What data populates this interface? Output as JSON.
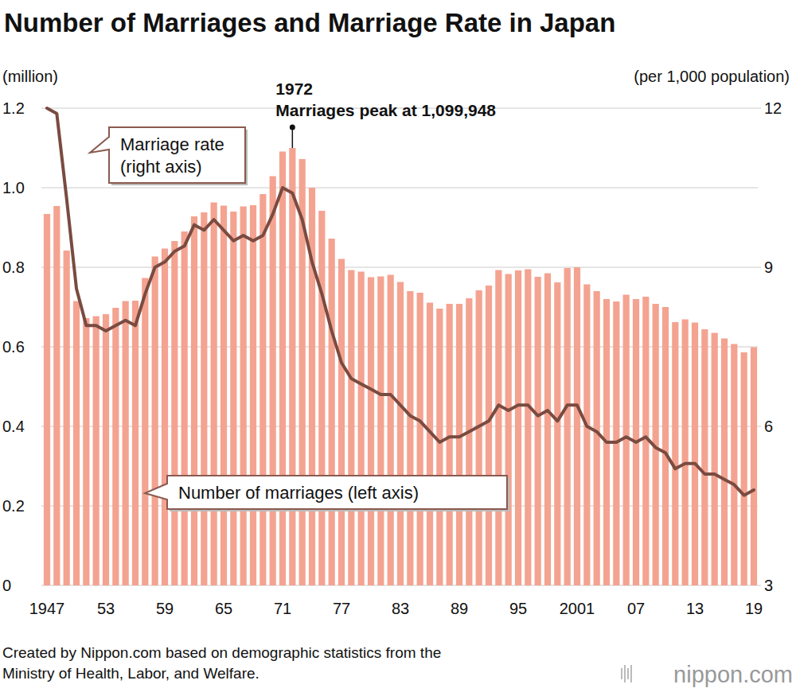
{
  "chart_data": {
    "type": "bar",
    "title": "Number of Marriages and Marriage Rate in Japan",
    "y_label": "(million)",
    "y2_label": "(per 1,000 population)",
    "annotation": [
      "1972",
      "Marriages peak at 1,099,948"
    ],
    "source": [
      "Created by Nippon.com based on demographic statistics from the",
      "Ministry of Health, Labor, and Welfare."
    ],
    "logo": "nippon.com",
    "categories": [
      "1947",
      null,
      null,
      null,
      null,
      null,
      "53",
      null,
      null,
      null,
      null,
      null,
      "59",
      null,
      null,
      null,
      null,
      null,
      "65",
      null,
      null,
      null,
      null,
      null,
      "71",
      null,
      null,
      null,
      null,
      null,
      "77",
      null,
      null,
      null,
      null,
      null,
      "83",
      null,
      null,
      null,
      null,
      null,
      "89",
      null,
      null,
      null,
      null,
      null,
      "95",
      null,
      null,
      null,
      null,
      null,
      "2001",
      null,
      null,
      null,
      null,
      null,
      "07",
      null,
      null,
      null,
      null,
      null,
      "13",
      null,
      null,
      null,
      null,
      null,
      "19"
    ],
    "series": [
      {
        "name": "Number of marriages (left axis)",
        "type": "bar",
        "color": "#f4a391",
        "values": [
          0.934,
          0.954,
          0.842,
          0.715,
          0.672,
          0.677,
          0.682,
          0.698,
          0.715,
          0.716,
          0.773,
          0.827,
          0.847,
          0.866,
          0.89,
          0.928,
          0.938,
          0.963,
          0.955,
          0.94,
          0.953,
          0.956,
          0.984,
          1.029,
          1.091,
          1.1,
          1.072,
          1.0,
          0.942,
          0.872,
          0.821,
          0.793,
          0.789,
          0.775,
          0.777,
          0.781,
          0.763,
          0.74,
          0.736,
          0.711,
          0.696,
          0.708,
          0.708,
          0.722,
          0.742,
          0.754,
          0.793,
          0.783,
          0.792,
          0.795,
          0.776,
          0.785,
          0.762,
          0.798,
          0.8,
          0.757,
          0.74,
          0.72,
          0.714,
          0.731,
          0.72,
          0.726,
          0.708,
          0.7,
          0.662,
          0.669,
          0.661,
          0.644,
          0.635,
          0.621,
          0.607,
          0.586,
          0.599
        ]
      },
      {
        "name": "Marriage rate (right axis)",
        "type": "line",
        "axis": "y2",
        "color": "#7a4b40",
        "values": [
          12.0,
          11.9,
          10.3,
          8.6,
          7.9,
          7.9,
          7.8,
          7.9,
          8.0,
          7.9,
          8.5,
          9.0,
          9.1,
          9.3,
          9.4,
          9.8,
          9.7,
          9.9,
          9.7,
          9.5,
          9.6,
          9.5,
          9.6,
          10.0,
          10.5,
          10.4,
          9.9,
          9.1,
          8.5,
          7.8,
          7.2,
          6.9,
          6.8,
          6.7,
          6.6,
          6.6,
          6.4,
          6.2,
          6.1,
          5.9,
          5.7,
          5.8,
          5.8,
          5.9,
          6.0,
          6.1,
          6.4,
          6.3,
          6.4,
          6.4,
          6.2,
          6.3,
          6.1,
          6.4,
          6.4,
          6.0,
          5.9,
          5.7,
          5.7,
          5.8,
          5.7,
          5.8,
          5.6,
          5.5,
          5.2,
          5.3,
          5.3,
          5.1,
          5.1,
          5.0,
          4.9,
          4.7,
          4.8
        ]
      }
    ],
    "ylim": [
      0,
      1.2
    ],
    "yticks": [
      0,
      0.2,
      0.4,
      0.6,
      0.8,
      {
        "value": 1,
        "label": "1.0"
      },
      1.2
    ],
    "y2lim": [
      3,
      12
    ],
    "y2ticks": [
      3,
      6,
      9,
      12
    ],
    "grid": true
  }
}
